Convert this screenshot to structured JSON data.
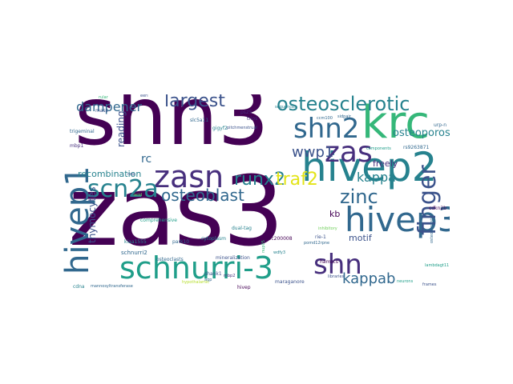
{
  "words": {
    "shn3": "shn3",
    "zas3": "zas3",
    "krc": "krc",
    "hivep2": "hivep2",
    "hivep3": "hivep3",
    "hivep1": "hivep1",
    "schnurri3": "schnurri-3",
    "zasn": "zasn",
    "shn2": "shn2",
    "osteosclerotic": "osteosclerotic",
    "scn2a": "scn2a",
    "zas": "zas",
    "shn": "shn",
    "finger": "finger",
    "largest": "largest",
    "dampener": "dampener",
    "wwp1": "wwp1",
    "runx2": "runx2",
    "traf2": "traf2",
    "zinc": "zinc",
    "osteoblast": "osteoblast",
    "kappab": "kappab",
    "kappa": "kappa",
    "osteoporosis": "osteoporosis",
    "recombination": "recombination",
    "thymocytes": "thymocytes",
    "reading": "reading",
    "rc": "rc",
    "freely": "freely",
    "motif": "motif",
    "kb": "kb",
    "schnurri2": "schnurri2",
    "kiaa1555": "kiaa1555",
    "mineralization": "mineralization",
    "osteoclasts": "osteoclasts",
    "cytoplasm": "cytoplasm",
    "comprehensive": "comprehensive",
    "trigeminal": "trigeminal",
    "mass": "mass",
    "ps25": "ps25",
    "slc5a11": "slc5a11",
    "trios": "trios",
    "gigyf2": "gigyf2",
    "pitchmenstrual": "pitchmenstrual",
    "loc200008": "loc200008",
    "hamscs": "hamscs",
    "lambdagt11": "lambdagt11",
    "frames": "frames",
    "shank1": "shank1",
    "park10": "park10",
    "dual_tag": "dual-tag",
    "nup05": "nup05",
    "wdfy3": "wdfy3",
    "rie1": "rie-1",
    "agp": "agp",
    "pomd12rpne": "pomd12rpne",
    "mbp2": "mbp2",
    "hivep": "hivep",
    "maraganore": "maraganore",
    "cdna": "cdna",
    "mannosyltransferase": "mannosyltransferase",
    "cdkn2b": "cdkn2b",
    "urpn": "urp-n",
    "rs9263871": "rs9263871",
    "osteogenesis": "osteogenesis",
    "libraries": "libraries",
    "mbp1": "mbp1",
    "rular": "rular",
    "eeri": "eeri",
    "ccm100": "ccm100",
    "sidpair": "sidpair",
    "components": "components",
    "nop": "nop",
    "acid": "acid",
    "hypothalamic": "hypothalamic",
    "inhibitory": "inhibitory",
    "neurons": "neurons",
    "sequences": "sequences"
  },
  "colors": {
    "dark_purple": "#440154",
    "indigo": "#472f7d",
    "blue_purple": "#3b528b",
    "steel_blue": "#31688e",
    "teal_blue": "#26828e",
    "teal": "#1f9e89",
    "green_teal": "#35b779",
    "green": "#6ece58",
    "lime": "#b5de2b",
    "yellow": "#e3e418",
    "background": "#ffffff"
  }
}
